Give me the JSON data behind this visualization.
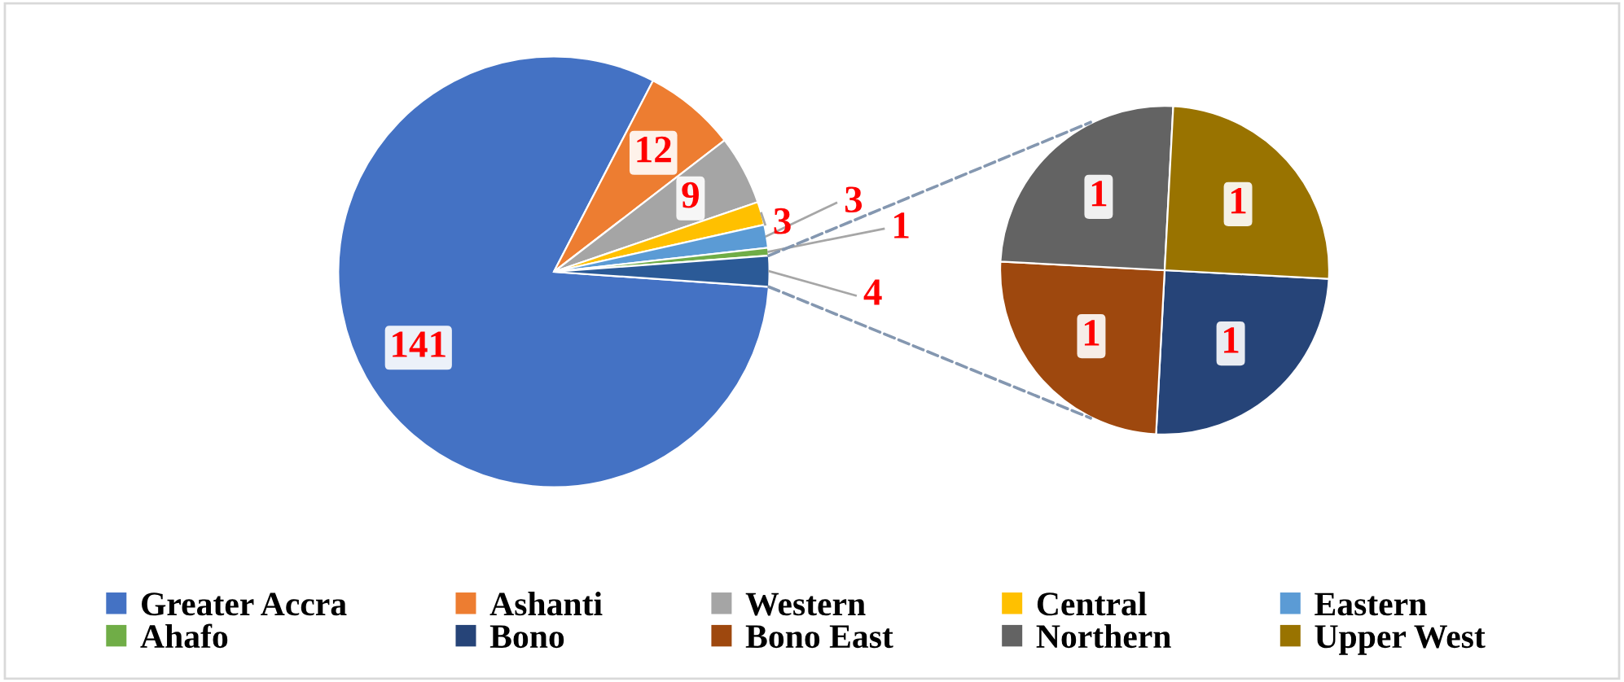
{
  "chart_data": [
    {
      "type": "pie",
      "categories": [
        "Greater Accra",
        "Ashanti",
        "Western",
        "Central",
        "Eastern",
        "Ahafo",
        null
      ],
      "values": [
        141,
        12,
        9,
        3,
        3,
        1,
        4
      ],
      "colors": [
        "#4472c4",
        "#ed7d31",
        "#a5a5a5",
        "#ffc000",
        "#5b9bd5",
        "#70ad47",
        "#2b5a97"
      ],
      "data_labels": true,
      "legend": "bottom"
    },
    {
      "type": "pie",
      "categories": [
        "Bono",
        "Bono East",
        "Northern",
        "Upper West"
      ],
      "values": [
        1,
        1,
        1,
        1
      ],
      "colors": [
        "#264478",
        "#9e480e",
        "#636363",
        "#997300"
      ],
      "data_labels": true,
      "legend": "bottom"
    }
  ]
}
